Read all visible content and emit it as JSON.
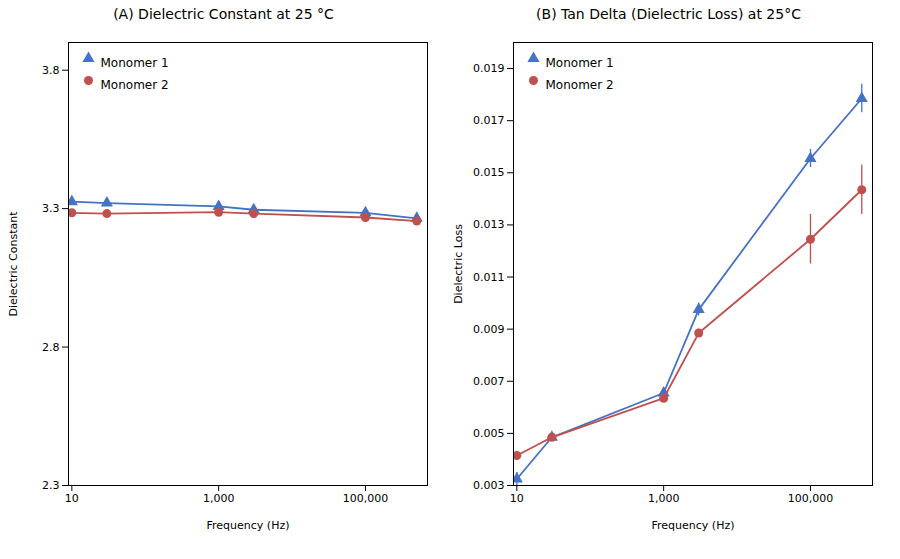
{
  "chart_data": [
    {
      "type": "line",
      "title": "(A) Dielectric Constant  at 25 °C",
      "xlabel": "Frequency (Hz)",
      "ylabel": "Dielectric Constant",
      "log": "x",
      "legend": "upper left",
      "x": [
        10,
        30,
        1000,
        3000,
        100000,
        500000
      ],
      "xlim": [
        9,
        700000
      ],
      "xticks": [
        10,
        {
          "value": 1000,
          "label": "1,000"
        },
        {
          "value": 100000,
          "label": "100,000"
        }
      ],
      "ylim": [
        2.3,
        3.9
      ],
      "yticks": [
        2.3,
        2.8,
        3.3,
        3.8
      ],
      "series": [
        {
          "name": "Monomer 1",
          "color": "#4472C4",
          "marker": "triangle",
          "values": [
            3.325,
            3.32,
            3.308,
            3.296,
            3.285,
            3.265
          ],
          "yerr": [
            0.007,
            0.006,
            0.007,
            0.006,
            0.006,
            0.005
          ]
        },
        {
          "name": "Monomer 2",
          "color": "#C0504D",
          "marker": "circle",
          "values": [
            3.285,
            3.282,
            3.287,
            3.282,
            3.268,
            3.255
          ],
          "yerr": [
            0.004,
            0.004,
            0.009,
            0.004,
            0.005,
            0.006
          ]
        }
      ]
    },
    {
      "type": "line",
      "title": "(B) Tan Delta (Dielectric Loss) at 25°C",
      "xlabel": "Frequency (Hz)",
      "ylabel": "Dielectric Loss",
      "log": "x",
      "legend": "upper left",
      "x": [
        10,
        30,
        1000,
        3000,
        100000,
        500000
      ],
      "xlim": [
        9,
        700000
      ],
      "xticks": [
        10,
        {
          "value": 1000,
          "label": "1,000"
        },
        {
          "value": 100000,
          "label": "100,000"
        }
      ],
      "ylim": [
        0.003,
        0.02
      ],
      "yticks": [
        0.003,
        0.005,
        0.007,
        0.009,
        0.011,
        0.013,
        0.015,
        0.017,
        0.019
      ],
      "series": [
        {
          "name": "Monomer 1",
          "color": "#4472C4",
          "marker": "triangle",
          "values": [
            0.00325,
            0.00485,
            0.00655,
            0.00975,
            0.01555,
            0.01785
          ],
          "yerr": [
            0.00025,
            0.00015,
            0.00015,
            0.00025,
            0.00035,
            0.00055
          ]
        },
        {
          "name": "Monomer 2",
          "color": "#C0504D",
          "marker": "circle",
          "values": [
            0.00415,
            0.00485,
            0.00635,
            0.00885,
            0.01245,
            0.01435
          ],
          "yerr": [
            0.00015,
            0.00015,
            0.00015,
            0.00015,
            0.00095,
            0.00095
          ]
        }
      ]
    }
  ]
}
